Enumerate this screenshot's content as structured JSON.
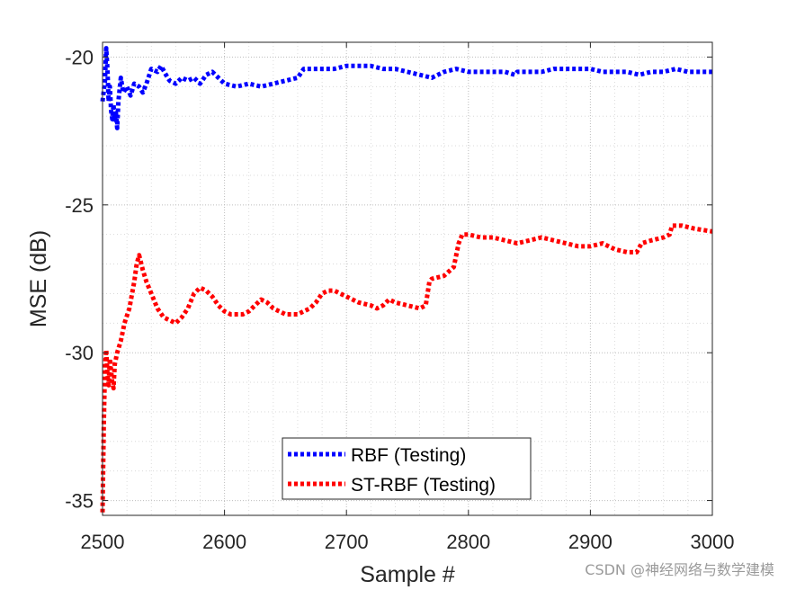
{
  "chart_data": {
    "type": "line",
    "title": "",
    "xlabel": "Sample #",
    "ylabel": "MSE (dB)",
    "xlim": [
      2500,
      3000
    ],
    "ylim": [
      -35.5,
      -19.5
    ],
    "xticks": [
      2500,
      2600,
      2700,
      2800,
      2900,
      3000
    ],
    "yticks": [
      -20,
      -25,
      -30,
      -35
    ],
    "grid": true,
    "legend_position": "bottom-center",
    "series": [
      {
        "name": "RBF (Testing)",
        "color": "#0000ff",
        "style": "dotted",
        "points": [
          [
            2500,
            -21.5
          ],
          [
            2502,
            -20.8
          ],
          [
            2503,
            -19.7
          ],
          [
            2504,
            -20.4
          ],
          [
            2505,
            -21.5
          ],
          [
            2506,
            -21.0
          ],
          [
            2507,
            -21.8
          ],
          [
            2508,
            -22.1
          ],
          [
            2509,
            -21.6
          ],
          [
            2510,
            -22.2
          ],
          [
            2511,
            -21.9
          ],
          [
            2512,
            -22.4
          ],
          [
            2513,
            -21.5
          ],
          [
            2515,
            -20.7
          ],
          [
            2517,
            -21.2
          ],
          [
            2520,
            -21.0
          ],
          [
            2523,
            -21.3
          ],
          [
            2526,
            -20.9
          ],
          [
            2530,
            -21.0
          ],
          [
            2533,
            -21.2
          ],
          [
            2536,
            -20.9
          ],
          [
            2540,
            -20.4
          ],
          [
            2545,
            -20.5
          ],
          [
            2548,
            -20.3
          ],
          [
            2552,
            -20.6
          ],
          [
            2555,
            -20.8
          ],
          [
            2560,
            -20.9
          ],
          [
            2565,
            -20.7
          ],
          [
            2570,
            -20.8
          ],
          [
            2575,
            -20.7
          ],
          [
            2580,
            -20.9
          ],
          [
            2585,
            -20.6
          ],
          [
            2590,
            -20.5
          ],
          [
            2595,
            -20.7
          ],
          [
            2600,
            -20.9
          ],
          [
            2610,
            -21.0
          ],
          [
            2620,
            -20.9
          ],
          [
            2630,
            -21.0
          ],
          [
            2640,
            -20.9
          ],
          [
            2650,
            -20.8
          ],
          [
            2660,
            -20.7
          ],
          [
            2665,
            -20.4
          ],
          [
            2670,
            -20.4
          ],
          [
            2680,
            -20.4
          ],
          [
            2690,
            -20.4
          ],
          [
            2700,
            -20.3
          ],
          [
            2710,
            -20.3
          ],
          [
            2720,
            -20.3
          ],
          [
            2730,
            -20.4
          ],
          [
            2740,
            -20.4
          ],
          [
            2750,
            -20.5
          ],
          [
            2760,
            -20.6
          ],
          [
            2770,
            -20.7
          ],
          [
            2780,
            -20.5
          ],
          [
            2790,
            -20.4
          ],
          [
            2800,
            -20.5
          ],
          [
            2810,
            -20.5
          ],
          [
            2820,
            -20.5
          ],
          [
            2830,
            -20.5
          ],
          [
            2838,
            -20.6
          ],
          [
            2840,
            -20.5
          ],
          [
            2850,
            -20.5
          ],
          [
            2860,
            -20.5
          ],
          [
            2870,
            -20.4
          ],
          [
            2880,
            -20.4
          ],
          [
            2890,
            -20.4
          ],
          [
            2900,
            -20.4
          ],
          [
            2910,
            -20.5
          ],
          [
            2920,
            -20.5
          ],
          [
            2930,
            -20.5
          ],
          [
            2940,
            -20.6
          ],
          [
            2950,
            -20.5
          ],
          [
            2960,
            -20.5
          ],
          [
            2970,
            -20.4
          ],
          [
            2980,
            -20.5
          ],
          [
            2990,
            -20.5
          ],
          [
            3000,
            -20.5
          ]
        ]
      },
      {
        "name": "ST-RBF (Testing)",
        "color": "#ff0000",
        "style": "dotted",
        "points": [
          [
            2500,
            -35.4
          ],
          [
            2501,
            -32.5
          ],
          [
            2502,
            -30.5
          ],
          [
            2503,
            -29.9
          ],
          [
            2504,
            -30.7
          ],
          [
            2505,
            -31.1
          ],
          [
            2506,
            -30.2
          ],
          [
            2508,
            -31.0
          ],
          [
            2509,
            -31.2
          ],
          [
            2510,
            -30.4
          ],
          [
            2512,
            -30.0
          ],
          [
            2515,
            -29.6
          ],
          [
            2518,
            -29.0
          ],
          [
            2522,
            -28.5
          ],
          [
            2526,
            -27.6
          ],
          [
            2528,
            -27.0
          ],
          [
            2530,
            -26.7
          ],
          [
            2533,
            -27.2
          ],
          [
            2536,
            -27.6
          ],
          [
            2540,
            -28.0
          ],
          [
            2545,
            -28.5
          ],
          [
            2550,
            -28.8
          ],
          [
            2555,
            -28.9
          ],
          [
            2560,
            -29.0
          ],
          [
            2565,
            -28.8
          ],
          [
            2570,
            -28.5
          ],
          [
            2575,
            -28.0
          ],
          [
            2580,
            -27.8
          ],
          [
            2585,
            -27.9
          ],
          [
            2590,
            -28.1
          ],
          [
            2595,
            -28.4
          ],
          [
            2600,
            -28.6
          ],
          [
            2605,
            -28.7
          ],
          [
            2610,
            -28.7
          ],
          [
            2615,
            -28.7
          ],
          [
            2620,
            -28.6
          ],
          [
            2625,
            -28.4
          ],
          [
            2630,
            -28.2
          ],
          [
            2635,
            -28.3
          ],
          [
            2640,
            -28.5
          ],
          [
            2645,
            -28.6
          ],
          [
            2650,
            -28.7
          ],
          [
            2655,
            -28.7
          ],
          [
            2660,
            -28.7
          ],
          [
            2665,
            -28.6
          ],
          [
            2670,
            -28.5
          ],
          [
            2675,
            -28.3
          ],
          [
            2680,
            -28.0
          ],
          [
            2685,
            -27.9
          ],
          [
            2690,
            -27.9
          ],
          [
            2700,
            -28.1
          ],
          [
            2710,
            -28.3
          ],
          [
            2720,
            -28.4
          ],
          [
            2725,
            -28.5
          ],
          [
            2730,
            -28.4
          ],
          [
            2735,
            -28.2
          ],
          [
            2740,
            -28.3
          ],
          [
            2750,
            -28.4
          ],
          [
            2760,
            -28.5
          ],
          [
            2765,
            -28.4
          ],
          [
            2768,
            -27.6
          ],
          [
            2770,
            -27.5
          ],
          [
            2780,
            -27.4
          ],
          [
            2788,
            -27.1
          ],
          [
            2792,
            -26.3
          ],
          [
            2795,
            -26.0
          ],
          [
            2800,
            -26.0
          ],
          [
            2810,
            -26.1
          ],
          [
            2820,
            -26.1
          ],
          [
            2830,
            -26.2
          ],
          [
            2840,
            -26.3
          ],
          [
            2850,
            -26.2
          ],
          [
            2860,
            -26.1
          ],
          [
            2870,
            -26.2
          ],
          [
            2880,
            -26.3
          ],
          [
            2890,
            -26.4
          ],
          [
            2900,
            -26.4
          ],
          [
            2910,
            -26.3
          ],
          [
            2920,
            -26.5
          ],
          [
            2930,
            -26.6
          ],
          [
            2938,
            -26.6
          ],
          [
            2942,
            -26.3
          ],
          [
            2950,
            -26.2
          ],
          [
            2960,
            -26.1
          ],
          [
            2965,
            -26.0
          ],
          [
            2967,
            -25.7
          ],
          [
            2975,
            -25.7
          ],
          [
            2985,
            -25.8
          ],
          [
            3000,
            -25.9
          ]
        ]
      }
    ]
  },
  "watermark": "CSDN @神经网络与数学建模"
}
